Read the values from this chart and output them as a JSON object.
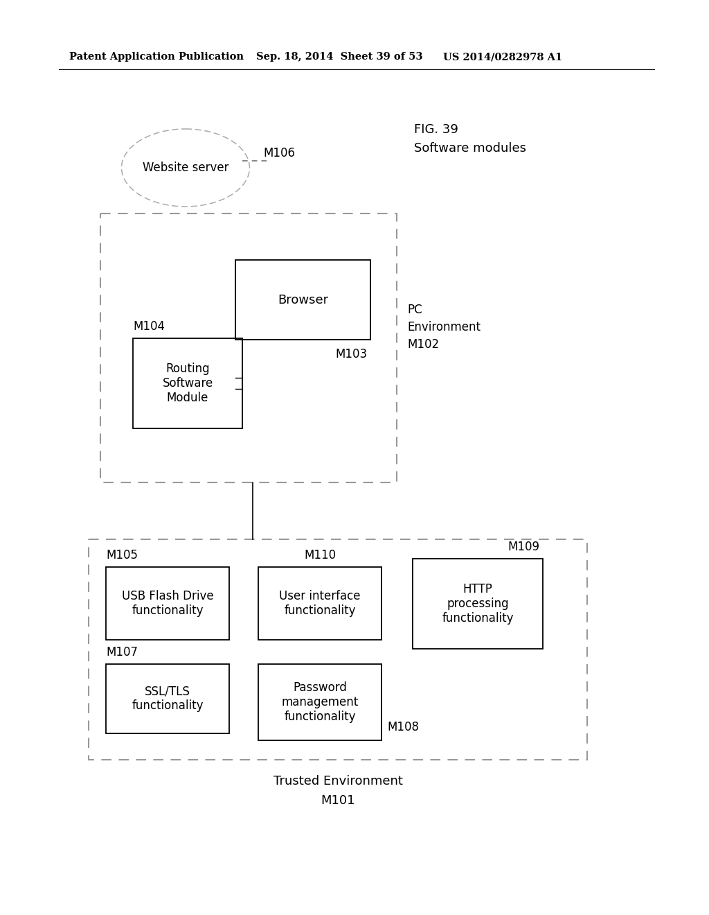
{
  "header_left": "Patent Application Publication",
  "header_mid": "Sep. 18, 2014  Sheet 39 of 53",
  "header_right": "US 2014/0282978 A1",
  "fig_title": "FIG. 39",
  "fig_subtitle": "Software modules",
  "ellipse_label": "Website server",
  "ellipse_ref": "M106",
  "pc_env_label": "PC\nEnvironment\nM102",
  "browser_label": "Browser",
  "browser_ref": "M103",
  "routing_label": "Routing\nSoftware\nModule",
  "routing_ref": "M104",
  "trusted_env_line1": "Trusted Environment",
  "trusted_env_line2": "M101",
  "usb_label": "USB Flash Drive\nfunctionality",
  "usb_ref": "M105",
  "ui_label": "User interface\nfunctionality",
  "ui_ref": "M110",
  "http_label": "HTTP\nprocessing\nfunctionality",
  "http_ref": "M109",
  "ssl_label": "SSL/TLS\nfunctionality",
  "ssl_ref": "M107",
  "pwd_label": "Password\nmanagement\nfunctionality",
  "pwd_ref": "M108",
  "bg_color": "#ffffff",
  "text_color": "#000000"
}
